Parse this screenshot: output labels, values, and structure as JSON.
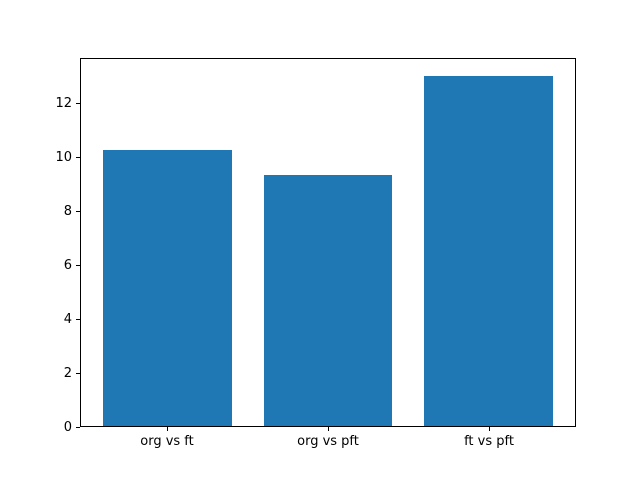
{
  "chart_data": {
    "type": "bar",
    "title": "",
    "xlabel": "",
    "ylabel": "",
    "categories": [
      "org vs ft",
      "org vs pft",
      "ft vs pft"
    ],
    "values": [
      10.25,
      9.35,
      13.0
    ],
    "yticks": [
      0,
      2,
      4,
      6,
      8,
      10,
      12
    ],
    "ylim": [
      0,
      13.65
    ],
    "xlim": [
      -0.54,
      2.54
    ],
    "bar_width": 0.8,
    "x_centers": [
      0,
      1,
      2
    ],
    "grid": "off",
    "legend": "none",
    "colors": {
      "bar": "#1f77b4",
      "spine": "#000000",
      "text": "#000000",
      "background": "#ffffff"
    }
  }
}
